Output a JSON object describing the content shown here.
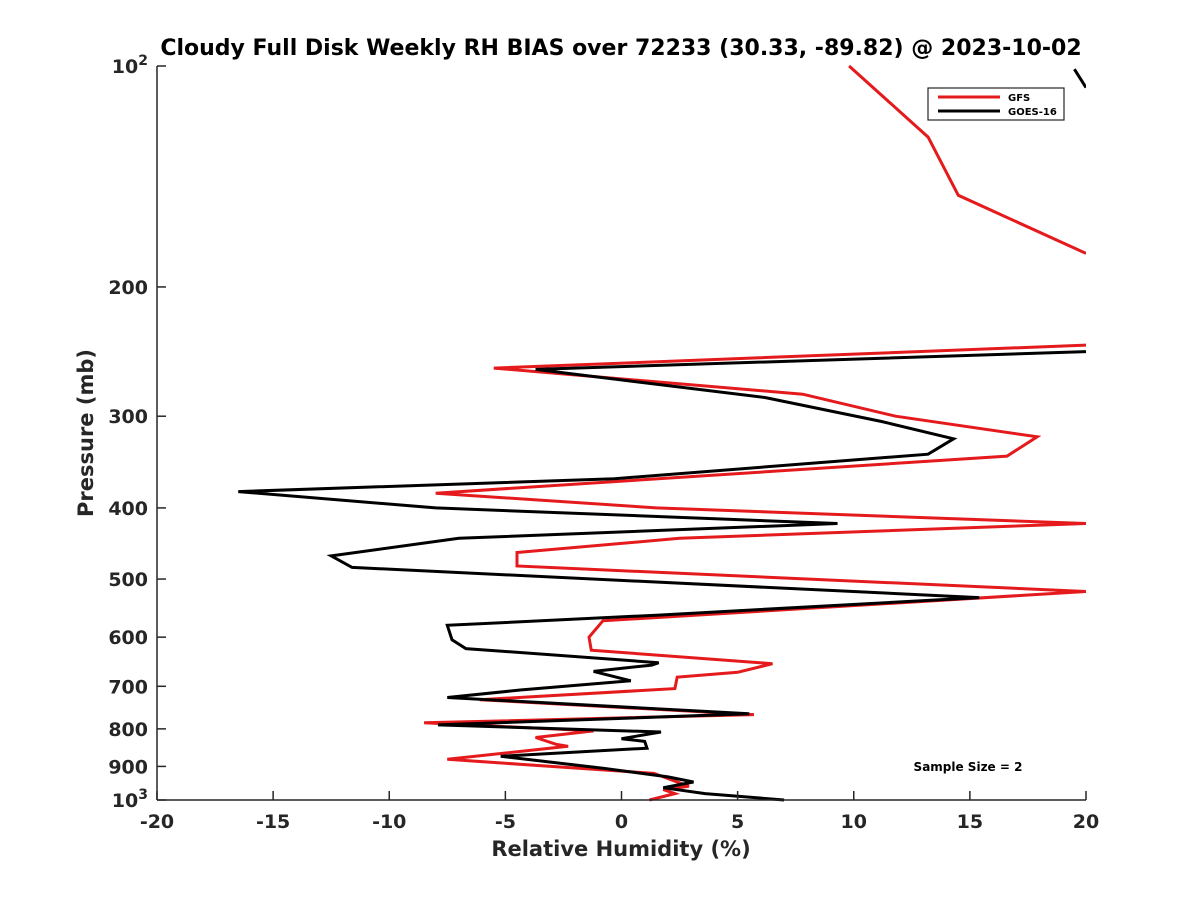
{
  "chart_data": {
    "type": "line",
    "title": "Cloudy Full Disk Weekly RH BIAS over 72233 (30.33, -89.82) @ 2023-10-02",
    "xlabel": "Relative Humidity (%)",
    "ylabel": "Pressure (mb)",
    "xlim": [
      -20,
      20
    ],
    "ylim": [
      100,
      1000
    ],
    "y_scale": "log",
    "y_reversed": true,
    "x_ticks": [
      -20,
      -15,
      -10,
      -5,
      0,
      5,
      10,
      15,
      20
    ],
    "x_tick_labels": [
      "-20",
      "-15",
      "-10",
      "-5",
      "0",
      "5",
      "10",
      "15",
      "20"
    ],
    "y_ticks": [
      {
        "value": 100,
        "base": "10",
        "exp": "2"
      },
      {
        "value": 200,
        "label": "200"
      },
      {
        "value": 300,
        "label": "300"
      },
      {
        "value": 400,
        "label": "400"
      },
      {
        "value": 500,
        "label": "500"
      },
      {
        "value": 600,
        "label": "600"
      },
      {
        "value": 700,
        "label": "700"
      },
      {
        "value": 800,
        "label": "800"
      },
      {
        "value": 900,
        "label": "900"
      },
      {
        "value": 1000,
        "base": "10",
        "exp": "3"
      }
    ],
    "legend_position": "top-right",
    "annotation": "Sample Size = 2",
    "series": [
      {
        "name": "GFS",
        "color": "#e41a1c",
        "points": [
          [
            9.8,
            100
          ],
          [
            13.2,
            125
          ],
          [
            14.5,
            150
          ],
          [
            20,
            180
          ],
          [
            null,
            null
          ],
          [
            20,
            240
          ],
          [
            -5.5,
            258
          ],
          [
            7.8,
            280
          ],
          [
            11.8,
            300
          ],
          [
            17.9,
            320
          ],
          [
            16.6,
            340
          ],
          [
            -8.0,
            382
          ],
          [
            1.5,
            400
          ],
          [
            20,
            420
          ],
          [
            2.5,
            440
          ],
          [
            -4.5,
            460
          ],
          [
            -4.5,
            480
          ],
          [
            20,
            520
          ],
          [
            -0.8,
            570
          ],
          [
            -1.4,
            600
          ],
          [
            -1.3,
            625
          ],
          [
            6.5,
            652
          ],
          [
            5.0,
            670
          ],
          [
            2.4,
            680
          ],
          [
            2.3,
            705
          ],
          [
            -6.1,
            730
          ],
          [
            5.7,
            765
          ],
          [
            -8.5,
            785
          ],
          [
            -1.2,
            805
          ],
          [
            -3.7,
            822
          ],
          [
            -2.8,
            840
          ],
          [
            -2.3,
            845
          ],
          [
            -7.5,
            880
          ],
          [
            1.4,
            920
          ],
          [
            2.9,
            958
          ],
          [
            1.8,
            968
          ],
          [
            2.3,
            980
          ],
          [
            1.2,
            1000
          ]
        ]
      },
      {
        "name": "GOES-16",
        "color": "#000000",
        "points": [
          [
            19.5,
            101
          ],
          [
            20,
            107
          ],
          [
            null,
            null
          ],
          [
            20,
            245
          ],
          [
            -3.7,
            259
          ],
          [
            6.2,
            283
          ],
          [
            11.2,
            305
          ],
          [
            14.3,
            322
          ],
          [
            13.2,
            338
          ],
          [
            -0.3,
            365
          ],
          [
            -16.5,
            380
          ],
          [
            -8.0,
            400
          ],
          [
            9.3,
            420
          ],
          [
            -7.0,
            440
          ],
          [
            -12.5,
            465
          ],
          [
            -11.6,
            482
          ],
          [
            15.4,
            530
          ],
          [
            1.5,
            560
          ],
          [
            -7.5,
            578
          ],
          [
            -7.3,
            605
          ],
          [
            -6.7,
            622
          ],
          [
            1.6,
            650
          ],
          [
            1.3,
            655
          ],
          [
            -1.2,
            668
          ],
          [
            0.4,
            688
          ],
          [
            -4.3,
            708
          ],
          [
            -7.5,
            725
          ],
          [
            5.5,
            763
          ],
          [
            -7.9,
            790
          ],
          [
            1.7,
            808
          ],
          [
            0.0,
            825
          ],
          [
            1.0,
            832
          ],
          [
            1.1,
            850
          ],
          [
            -5.2,
            872
          ],
          [
            -0.8,
            905
          ],
          [
            2.0,
            930
          ],
          [
            3.1,
            945
          ],
          [
            1.8,
            962
          ],
          [
            3.6,
            980
          ],
          [
            7.0,
            1000
          ]
        ]
      }
    ]
  }
}
